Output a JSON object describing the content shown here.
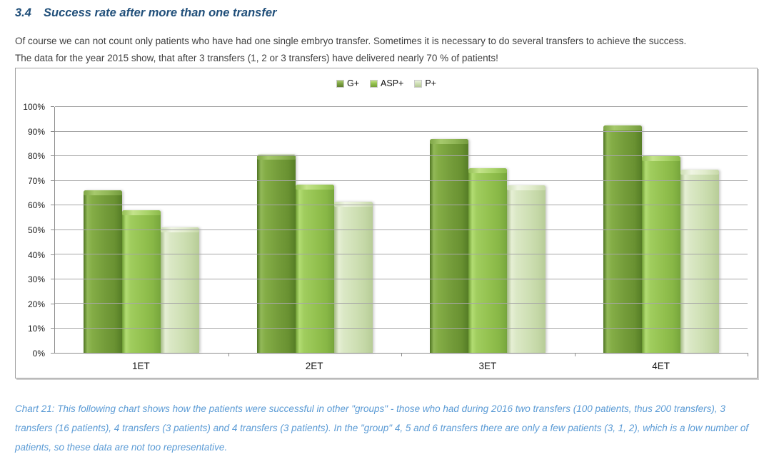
{
  "page": {
    "section_number": "3.4",
    "section_title": "Success rate after more than one transfer",
    "paragraphs": [
      "Of course we can not count only patients who have had one single embryo transfer. Sometimes it is necessary to do several transfers to achieve the success.",
      "The data for the year 2015 show, that after 3 transfers (1, 2 or 3 transfers) have delivered nearly 70 % of patients!"
    ],
    "caption": "Chart 21: This following chart shows how the patients were successful in other \"groups\" - those who had during 2016 two transfers (100 patients, thus 200 transfers), 3 transfers (16 patients), 4 transfers (3 patients) and 4 transfers (3 patients). In the \"group\" 4, 5 and 6 transfers there are only a few patients (3, 1, 2),  which is a low number of patients, so these data are not too representative."
  },
  "colors": {
    "heading": "#1F4E79",
    "body_text": "#3F3F3F",
    "caption": "#5B9BD5",
    "chart_border": "#A0A0A0",
    "gridline": "#A6A6A6",
    "axis": "#8C8C8C",
    "series_g_plus": "#749C3A",
    "series_asp_plus": "#93C14F",
    "series_p_plus": "#CFE0B5"
  },
  "chart_data": {
    "type": "bar",
    "title": "",
    "categories": [
      "1ET",
      "2ET",
      "3ET",
      "4ET"
    ],
    "series": [
      {
        "name": "G+",
        "values": [
          66,
          80.5,
          87,
          92.5
        ]
      },
      {
        "name": "ASP+",
        "values": [
          58,
          68.5,
          75,
          80
        ]
      },
      {
        "name": "P+",
        "values": [
          51,
          61.5,
          68,
          74.5
        ]
      }
    ],
    "xlabel": "",
    "ylabel": "",
    "ylim": [
      0,
      100
    ],
    "ytick_step": 10,
    "ytick_format": "percent",
    "grid": true,
    "legend_position": "top-center"
  }
}
